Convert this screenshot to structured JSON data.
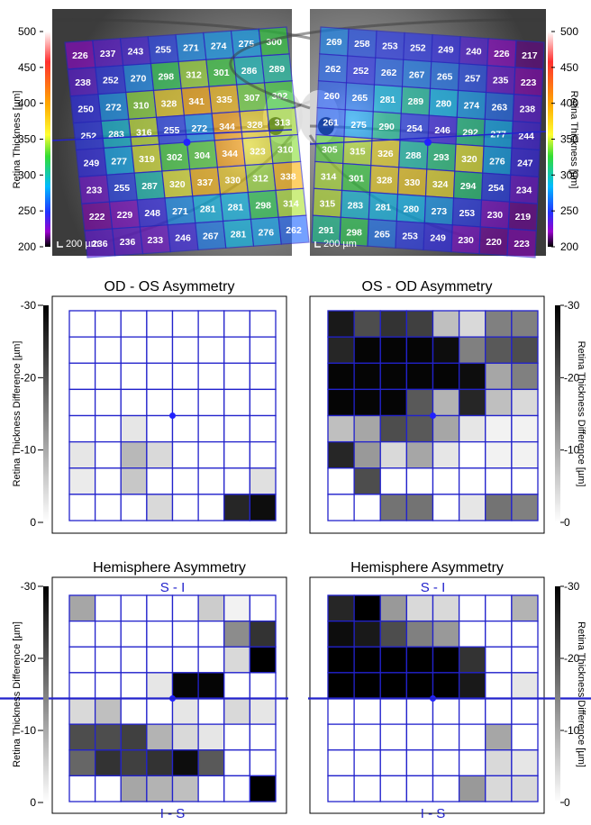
{
  "chart_data": [
    {
      "type": "heatmap",
      "panel": "od-thickness",
      "ylabel": "Retina Thickness [µm]",
      "colorbar_ticks": [
        "500",
        "450",
        "400",
        "350",
        "300",
        "250",
        "200"
      ],
      "scale_bar": "200 µm",
      "values": [
        [
          226,
          237,
          243,
          255,
          271,
          274,
          275,
          300
        ],
        [
          238,
          252,
          270,
          298,
          312,
          301,
          286,
          289
        ],
        [
          250,
          272,
          310,
          328,
          341,
          335,
          307,
          302
        ],
        [
          252,
          283,
          316,
          255,
          272,
          344,
          328,
          313
        ],
        [
          249,
          277,
          319,
          302,
          304,
          344,
          323,
          310
        ],
        [
          233,
          255,
          287,
          320,
          337,
          330,
          312,
          338
        ],
        [
          222,
          229,
          248,
          271,
          281,
          281,
          298,
          314
        ],
        [
          236,
          236,
          233,
          246,
          267,
          281,
          276,
          262
        ]
      ]
    },
    {
      "type": "heatmap",
      "panel": "os-thickness",
      "ylabel": "Retina Thickness [µm]",
      "colorbar_ticks": [
        "500",
        "450",
        "400",
        "350",
        "300",
        "250",
        "200"
      ],
      "scale_bar": "200 µm",
      "values": [
        [
          269,
          258,
          253,
          252,
          249,
          240,
          226,
          217
        ],
        [
          262,
          252,
          262,
          267,
          265,
          257,
          235,
          223
        ],
        [
          260,
          265,
          281,
          289,
          280,
          274,
          263,
          238
        ],
        [
          261,
          275,
          290,
          254,
          246,
          292,
          277,
          244
        ],
        [
          305,
          315,
          326,
          288,
          293,
          320,
          276,
          247
        ],
        [
          314,
          301,
          328,
          330,
          324,
          294,
          254,
          234
        ],
        [
          315,
          283,
          281,
          280,
          273,
          253,
          230,
          219
        ],
        [
          291,
          298,
          265,
          253,
          249,
          230,
          220,
          223
        ]
      ]
    },
    {
      "type": "heatmap",
      "panel": "od-os",
      "title": "OD - OS Asymmetry",
      "ylabel": "Retina Thickness Difference [µm]",
      "colorbar_ticks": [
        "-30",
        "-20",
        "-10",
        "0"
      ],
      "shade": [
        [
          0,
          0,
          0,
          0,
          0,
          0,
          0,
          0
        ],
        [
          0,
          0,
          0,
          0,
          0,
          0,
          0,
          0
        ],
        [
          0,
          0,
          0,
          0,
          0,
          0,
          0,
          0
        ],
        [
          0,
          0,
          0,
          0,
          0,
          0,
          0,
          0
        ],
        [
          0,
          0,
          0.1,
          0,
          0,
          0,
          0,
          0
        ],
        [
          0.1,
          0,
          0.28,
          0.15,
          0,
          0,
          0,
          0
        ],
        [
          0.08,
          0,
          0.22,
          0,
          0,
          0,
          0,
          0.12
        ],
        [
          0,
          0,
          0,
          0.15,
          0,
          0,
          0.85,
          0.95
        ]
      ]
    },
    {
      "type": "heatmap",
      "panel": "os-od",
      "title": "OS - OD Asymmetry",
      "ylabel": "Retina Thickness Difference [µm]",
      "colorbar_ticks": [
        "-30",
        "-20",
        "-10",
        "0"
      ],
      "shade": [
        [
          0.9,
          0.7,
          0.8,
          0.75,
          0.25,
          0.15,
          0.5,
          0.5
        ],
        [
          0.85,
          0.98,
          0.98,
          0.98,
          0.95,
          0.5,
          0.65,
          0.7
        ],
        [
          0.98,
          0.98,
          0.98,
          0.98,
          0.98,
          0.95,
          0.35,
          0.5
        ],
        [
          0.98,
          0.98,
          0.98,
          0.65,
          0.3,
          0.85,
          0.25,
          0.15
        ],
        [
          0.25,
          0.35,
          0.7,
          0.65,
          0.35,
          0.1,
          0.05,
          0.05
        ],
        [
          0.85,
          0.4,
          0.15,
          0.35,
          0.1,
          0.0,
          0.05,
          0.05
        ],
        [
          0.0,
          0.7,
          0.0,
          0.0,
          0.0,
          0.0,
          0.0,
          0.0
        ],
        [
          0.0,
          0.0,
          0.55,
          0.55,
          0.0,
          0.1,
          0.55,
          0.5
        ]
      ]
    },
    {
      "type": "heatmap",
      "panel": "od-hemi",
      "title": "Hemisphere Asymmetry",
      "label_top": "S - I",
      "label_bottom": "I - S",
      "ylabel": "Retina Thickness Difference [µm]",
      "colorbar_ticks": [
        "-30",
        "-20",
        "-10",
        "0"
      ],
      "shade": [
        [
          0.35,
          0,
          0,
          0,
          0,
          0.2,
          0.05,
          0
        ],
        [
          0,
          0,
          0,
          0,
          0,
          0,
          0.45,
          0.8
        ],
        [
          0,
          0,
          0,
          0,
          0,
          0,
          0.15,
          1.0
        ],
        [
          0,
          0,
          0,
          0.1,
          0.98,
          0.98,
          0,
          0
        ],
        [
          0.15,
          0.25,
          0,
          0,
          0.1,
          0,
          0.15,
          0.1
        ],
        [
          0.7,
          0.7,
          0.75,
          0.3,
          0.15,
          0.1,
          0,
          0
        ],
        [
          0.6,
          0.8,
          0.75,
          0.8,
          0.95,
          0.65,
          0,
          0
        ],
        [
          0,
          0,
          0.35,
          0.3,
          0.25,
          0,
          0,
          1.0
        ]
      ]
    },
    {
      "type": "heatmap",
      "panel": "os-hemi",
      "title": "Hemisphere Asymmetry",
      "label_top": "S - I",
      "label_bottom": "I - S",
      "ylabel": "Retina Thickness Difference [µm]",
      "colorbar_ticks": [
        "-30",
        "-20",
        "-10",
        "0"
      ],
      "shade": [
        [
          0.85,
          1.0,
          0.4,
          0.15,
          0.15,
          0,
          0,
          0.3
        ],
        [
          0.95,
          0.9,
          0.7,
          0.5,
          0.4,
          0,
          0,
          0
        ],
        [
          1.0,
          1.0,
          1.0,
          1.0,
          1.0,
          0.8,
          0,
          0
        ],
        [
          1.0,
          1.0,
          1.0,
          1.0,
          1.0,
          0.9,
          0,
          0.1
        ],
        [
          0,
          0,
          0,
          0,
          0,
          0,
          0,
          0
        ],
        [
          0,
          0,
          0,
          0,
          0,
          0,
          0.35,
          0
        ],
        [
          0,
          0,
          0,
          0,
          0,
          0,
          0.15,
          0.1
        ],
        [
          0,
          0,
          0,
          0,
          0,
          0.4,
          0.15,
          0.15
        ]
      ]
    }
  ]
}
